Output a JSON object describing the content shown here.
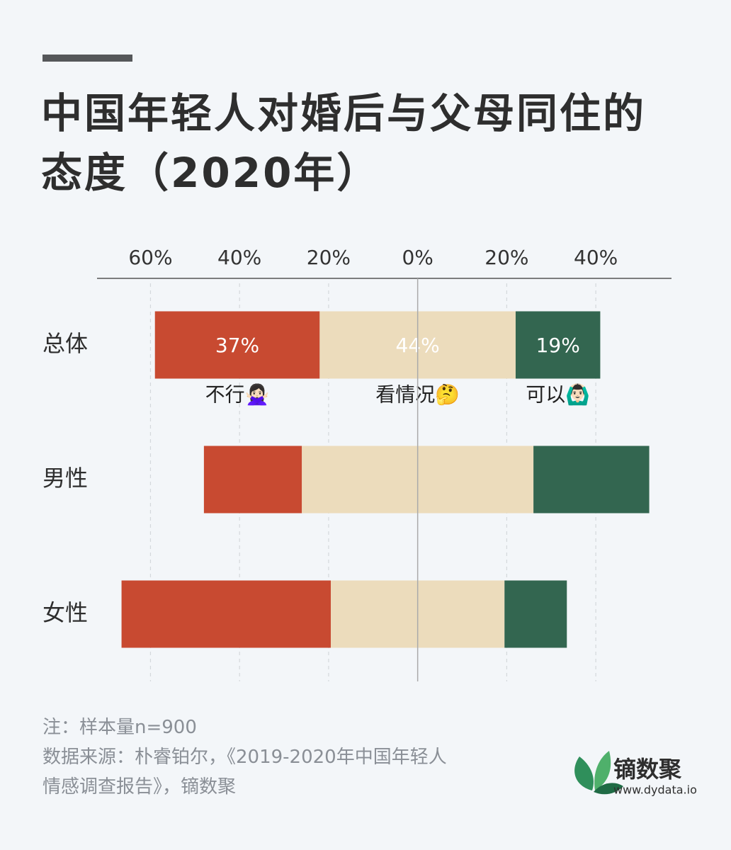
{
  "chart_data": {
    "type": "diverging-bar",
    "title": "中国年轻人对婚后与父母同住的态度（2020年）",
    "categories": [
      "总体",
      "男性",
      "女性"
    ],
    "series": [
      {
        "name": "不行🙅🏻‍♀️",
        "color": "#c84a31",
        "values": [
          37,
          22,
          47
        ],
        "value_labels": [
          "37%",
          null,
          null
        ]
      },
      {
        "name": "看情况🤔",
        "color": "#ecdcbc",
        "values": [
          44,
          52,
          39
        ],
        "value_labels": [
          "44%",
          null,
          null
        ]
      },
      {
        "name": "可以🙆🏻‍♂️",
        "color": "#336650",
        "values": [
          19,
          26,
          14
        ],
        "value_labels": [
          "19%",
          null,
          null
        ]
      }
    ],
    "xlim": [
      -72,
      57
    ],
    "xticks": [
      {
        "value": -60,
        "label": "60%"
      },
      {
        "value": -40,
        "label": "40%"
      },
      {
        "value": -20,
        "label": "20%"
      },
      {
        "value": 0,
        "label": "0%"
      },
      {
        "value": 20,
        "label": "20%"
      },
      {
        "value": 40,
        "label": "40%"
      }
    ],
    "grid": true,
    "notes": [
      "注：样本量n=900",
      "数据来源：朴睿铂尔，《2019-2020年中国年轻人",
      "情感调查报告》，镝数聚"
    ],
    "brand": {
      "name": "镝数聚",
      "url": "www.dydata.io"
    }
  }
}
